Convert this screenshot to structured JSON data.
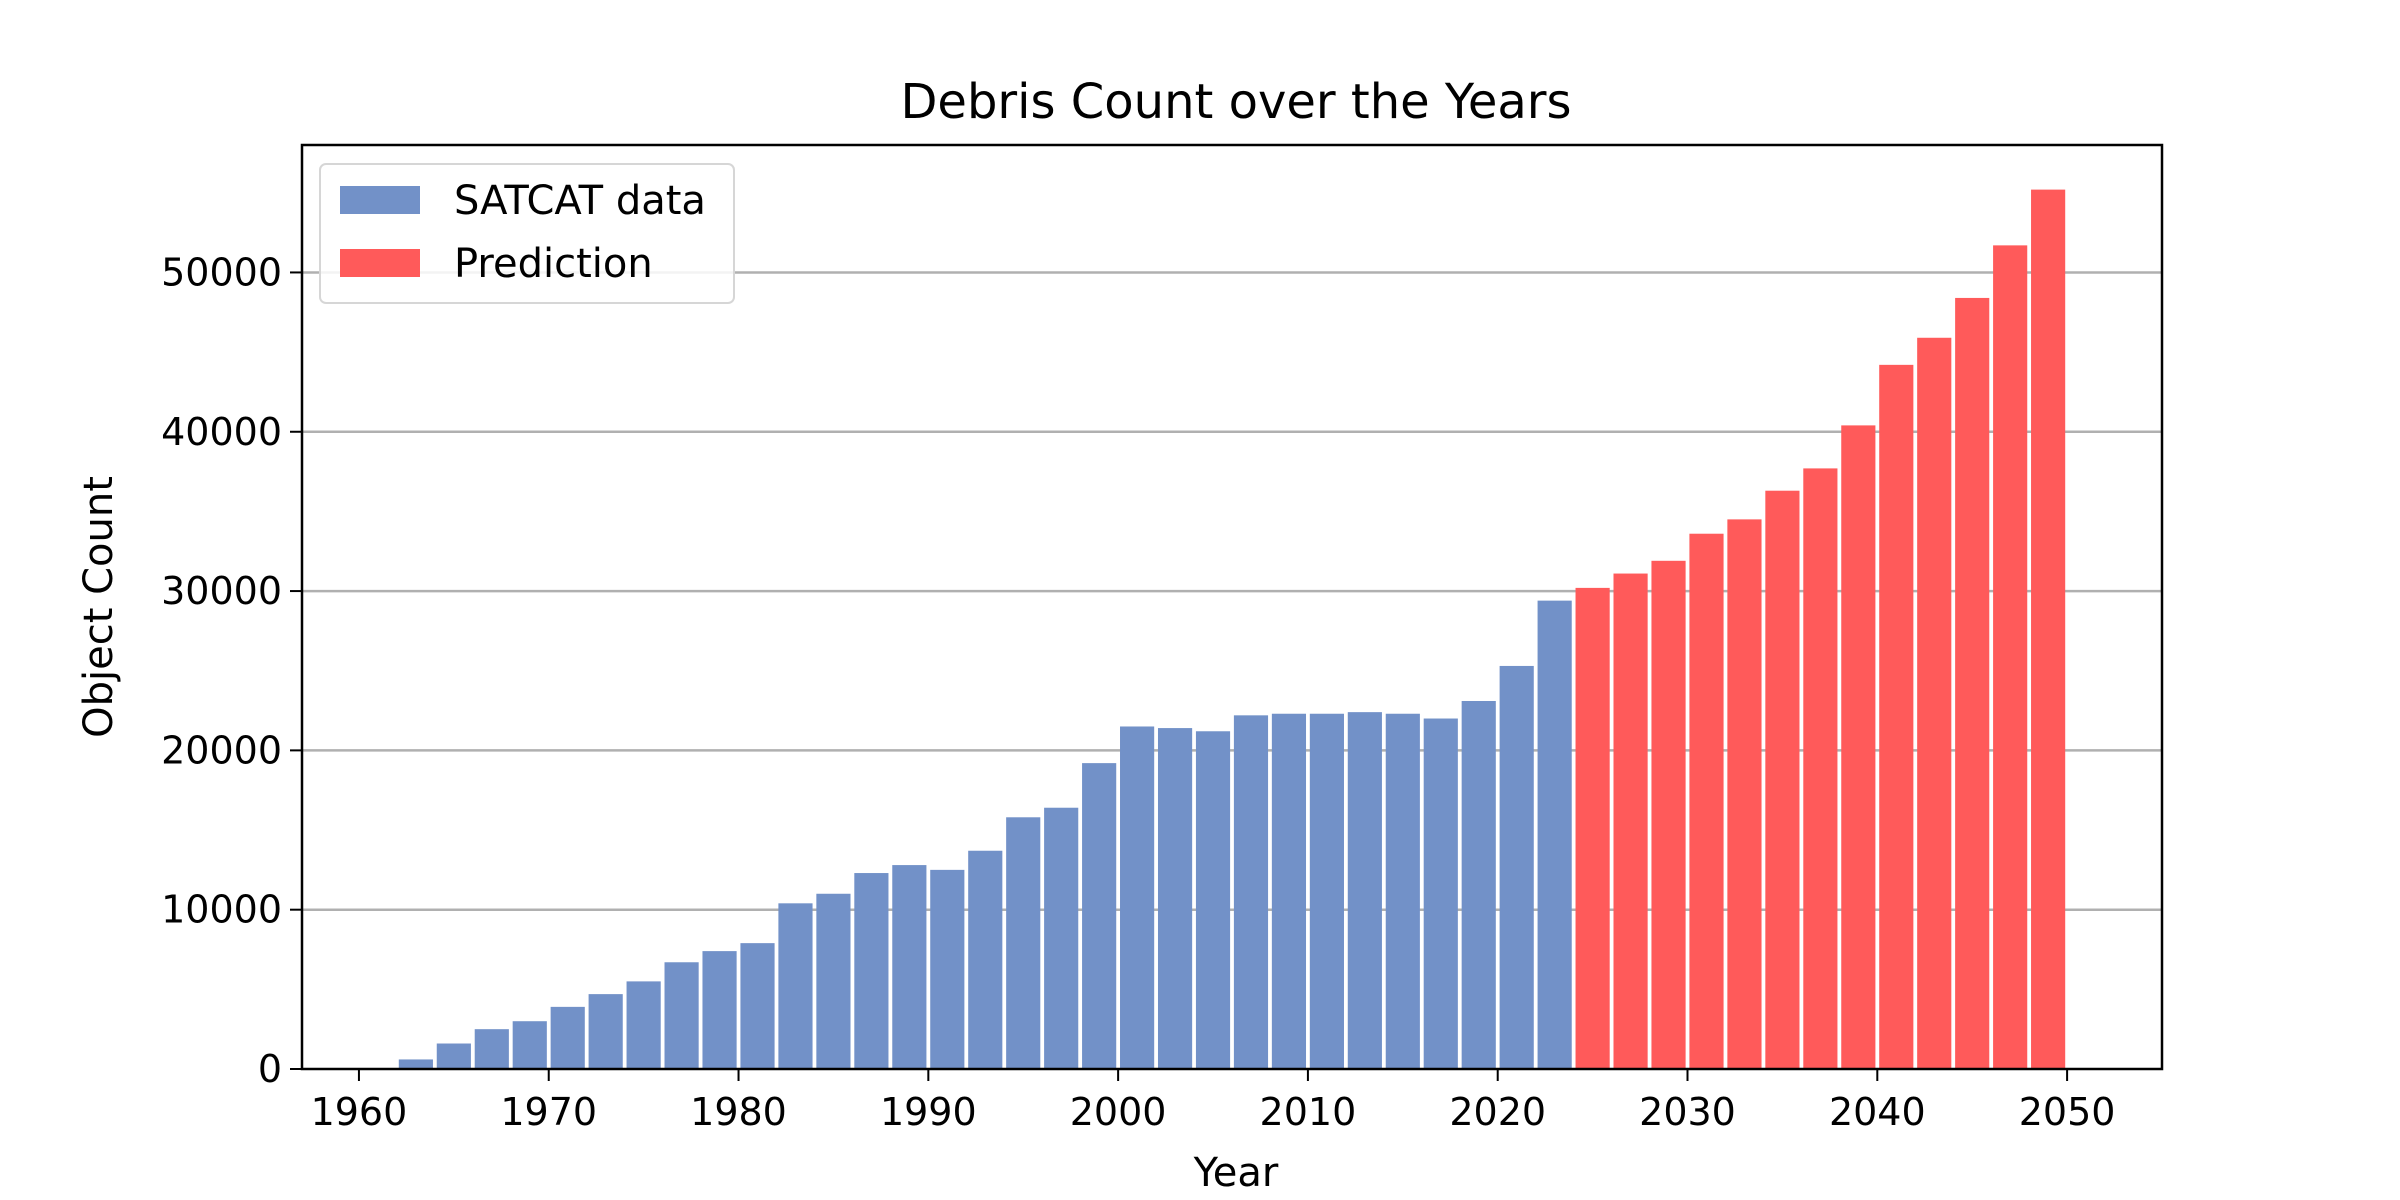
{
  "chart_data": {
    "type": "bar",
    "title": "Debris Count over the Years",
    "xlabel": "Year",
    "ylabel": "Object Count",
    "xlim": [
      1957,
      2055
    ],
    "ylim": [
      0,
      58000
    ],
    "xticks": [
      1960,
      1970,
      1980,
      1990,
      2000,
      2010,
      2020,
      2030,
      2040,
      2050
    ],
    "yticks": [
      0,
      10000,
      20000,
      30000,
      40000,
      50000
    ],
    "grid": "horizontal",
    "legend_position": "top-left",
    "series": [
      {
        "name": "SATCAT data",
        "color": "#7291c8",
        "x": [
          1961,
          1963,
          1965,
          1967,
          1969,
          1971,
          1973,
          1975,
          1977,
          1979,
          1981,
          1983,
          1985,
          1987,
          1989,
          1991,
          1993,
          1995,
          1997,
          1999,
          2001,
          2003,
          2005,
          2007,
          2009,
          2011,
          2013,
          2015,
          2017,
          2019,
          2021,
          2023
        ],
        "values": [
          0,
          600,
          1600,
          2500,
          3000,
          3900,
          4700,
          5500,
          6700,
          7400,
          7900,
          10400,
          11000,
          12300,
          12800,
          12500,
          13700,
          15800,
          16400,
          19200,
          21500,
          21400,
          21200,
          22200,
          22300,
          22300,
          22400,
          22300,
          22000,
          23100,
          25300,
          29400
        ]
      },
      {
        "name": "Prediction",
        "color": "#ff5a5a",
        "x": [
          2025,
          2027,
          2029,
          2031,
          2033,
          2035,
          2037,
          2039,
          2041,
          2043,
          2045,
          2047,
          2049
        ],
        "values": [
          30200,
          31100,
          31900,
          33600,
          34500,
          36300,
          37700,
          40400,
          44200,
          45900,
          48400,
          51700,
          55200
        ]
      }
    ]
  }
}
